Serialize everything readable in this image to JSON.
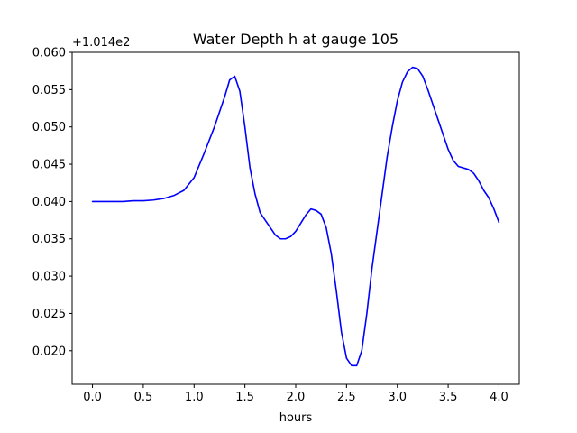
{
  "chart_data": {
    "type": "line",
    "title": "Water Depth h at gauge 105",
    "xlabel": "hours",
    "ylabel": "",
    "y_offset_label": "+1.014e2",
    "xlim": [
      -0.2,
      4.2
    ],
    "ylim": [
      0.0155,
      0.06
    ],
    "xticks": [
      0.0,
      0.5,
      1.0,
      1.5,
      2.0,
      2.5,
      3.0,
      3.5,
      4.0
    ],
    "xtick_labels": [
      "0.0",
      "0.5",
      "1.0",
      "1.5",
      "2.0",
      "2.5",
      "3.0",
      "3.5",
      "4.0"
    ],
    "yticks": [
      0.02,
      0.025,
      0.03,
      0.035,
      0.04,
      0.045,
      0.05,
      0.055,
      0.06
    ],
    "ytick_labels": [
      "0.020",
      "0.025",
      "0.030",
      "0.035",
      "0.040",
      "0.045",
      "0.050",
      "0.055",
      "0.060"
    ],
    "grid": false,
    "series": [
      {
        "color": "#0000ff",
        "x": [
          0.0,
          0.1,
          0.2,
          0.3,
          0.4,
          0.5,
          0.6,
          0.7,
          0.8,
          0.9,
          1.0,
          1.1,
          1.2,
          1.3,
          1.35,
          1.4,
          1.45,
          1.5,
          1.55,
          1.6,
          1.65,
          1.7,
          1.8,
          1.85,
          1.9,
          1.95,
          2.0,
          2.1,
          2.15,
          2.2,
          2.25,
          2.3,
          2.35,
          2.4,
          2.45,
          2.5,
          2.55,
          2.6,
          2.65,
          2.7,
          2.75,
          2.8,
          2.85,
          2.9,
          2.95,
          3.0,
          3.05,
          3.1,
          3.15,
          3.2,
          3.25,
          3.3,
          3.4,
          3.5,
          3.55,
          3.6,
          3.7,
          3.75,
          3.8,
          3.85,
          3.9,
          3.95,
          4.0
        ],
        "y": [
          0.04,
          0.04,
          0.04,
          0.04,
          0.0401,
          0.0401,
          0.0402,
          0.0404,
          0.0408,
          0.0415,
          0.0432,
          0.0465,
          0.05,
          0.054,
          0.0563,
          0.0568,
          0.0548,
          0.05,
          0.0445,
          0.041,
          0.0385,
          0.0375,
          0.0355,
          0.035,
          0.035,
          0.0353,
          0.036,
          0.0382,
          0.039,
          0.0388,
          0.0383,
          0.0365,
          0.033,
          0.028,
          0.0225,
          0.019,
          0.018,
          0.018,
          0.02,
          0.025,
          0.031,
          0.036,
          0.041,
          0.046,
          0.05,
          0.0535,
          0.056,
          0.0574,
          0.058,
          0.0578,
          0.0568,
          0.055,
          0.051,
          0.047,
          0.0455,
          0.0447,
          0.0443,
          0.0438,
          0.0428,
          0.0415,
          0.0405,
          0.039,
          0.0372
        ]
      }
    ]
  }
}
